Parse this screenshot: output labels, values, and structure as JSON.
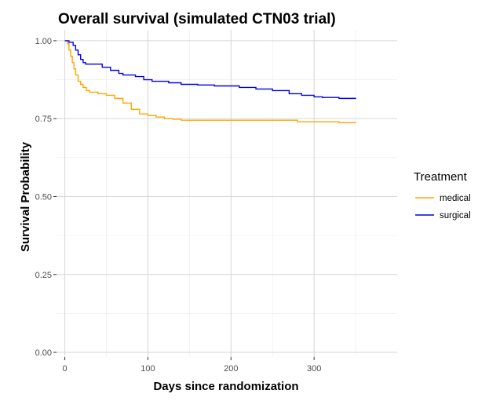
{
  "chart_data": {
    "type": "line",
    "title": "Overall survival (simulated CTN03 trial)",
    "xlabel": "Days since randomization",
    "ylabel": "Survival Probability",
    "xlim": [
      -10,
      400
    ],
    "ylim": [
      -0.015,
      1.035
    ],
    "x_ticks": [
      0,
      100,
      200,
      300
    ],
    "x_tick_labels": [
      "0",
      "100",
      "200",
      "300"
    ],
    "y_ticks": [
      0,
      0.25,
      0.5,
      0.75,
      1
    ],
    "y_tick_labels": [
      "0.00",
      "0.25",
      "0.50",
      "0.75",
      "1.00"
    ],
    "grid": true,
    "legend": {
      "title": "Treatment",
      "position": "right"
    },
    "series": [
      {
        "name": "medical",
        "color": "#FFA500",
        "points": [
          [
            0,
            1.0
          ],
          [
            3,
            0.99
          ],
          [
            5,
            0.97
          ],
          [
            7,
            0.95
          ],
          [
            9,
            0.93
          ],
          [
            11,
            0.91
          ],
          [
            13,
            0.89
          ],
          [
            16,
            0.87
          ],
          [
            19,
            0.86
          ],
          [
            22,
            0.85
          ],
          [
            26,
            0.84
          ],
          [
            30,
            0.835
          ],
          [
            40,
            0.83
          ],
          [
            50,
            0.825
          ],
          [
            60,
            0.815
          ],
          [
            70,
            0.8
          ],
          [
            80,
            0.78
          ],
          [
            90,
            0.765
          ],
          [
            100,
            0.76
          ],
          [
            110,
            0.755
          ],
          [
            120,
            0.75
          ],
          [
            130,
            0.748
          ],
          [
            140,
            0.745
          ],
          [
            270,
            0.745
          ],
          [
            280,
            0.74
          ],
          [
            330,
            0.737
          ],
          [
            350,
            0.735
          ]
        ]
      },
      {
        "name": "surgical",
        "color": "#0000EE",
        "points": [
          [
            0,
            1.0
          ],
          [
            5,
            0.995
          ],
          [
            10,
            0.985
          ],
          [
            13,
            0.97
          ],
          [
            16,
            0.955
          ],
          [
            19,
            0.94
          ],
          [
            22,
            0.93
          ],
          [
            25,
            0.925
          ],
          [
            40,
            0.925
          ],
          [
            45,
            0.915
          ],
          [
            55,
            0.905
          ],
          [
            65,
            0.895
          ],
          [
            70,
            0.89
          ],
          [
            85,
            0.885
          ],
          [
            95,
            0.875
          ],
          [
            105,
            0.87
          ],
          [
            125,
            0.865
          ],
          [
            140,
            0.86
          ],
          [
            160,
            0.858
          ],
          [
            180,
            0.855
          ],
          [
            210,
            0.85
          ],
          [
            230,
            0.845
          ],
          [
            250,
            0.84
          ],
          [
            270,
            0.83
          ],
          [
            285,
            0.825
          ],
          [
            300,
            0.82
          ],
          [
            310,
            0.818
          ],
          [
            330,
            0.815
          ],
          [
            350,
            0.813
          ]
        ]
      }
    ]
  }
}
